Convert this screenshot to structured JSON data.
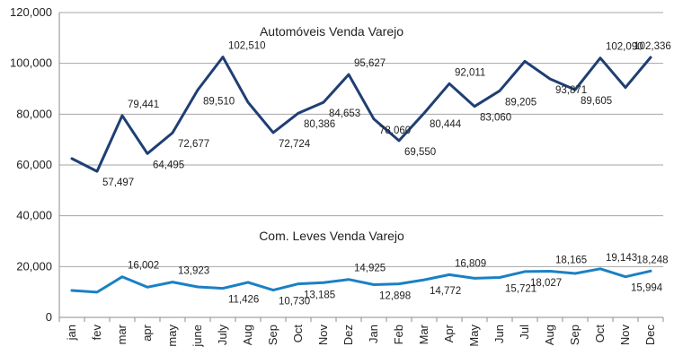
{
  "chart_data": {
    "type": "line",
    "categories": [
      "jan",
      "fev",
      "mar",
      "apr",
      "may",
      "june",
      "July",
      "Aug",
      "Sep",
      "Oct",
      "Nov",
      "Dez",
      "Jan",
      "Feb",
      "Mar",
      "Apr",
      "May",
      "Jun",
      "Jul",
      "Aug",
      "Sep",
      "Oct",
      "Nov",
      "Dec"
    ],
    "ylim": [
      0,
      120000
    ],
    "yticks": [
      "0",
      "20,000",
      "40,000",
      "60,000",
      "80,000",
      "100,000",
      "120,000"
    ],
    "ytick_values": [
      0,
      20000,
      40000,
      60000,
      80000,
      100000,
      120000
    ],
    "grid": true,
    "series": [
      {
        "name": "Automóveis Venda Varejo",
        "color": "#1f3f73",
        "values": [
          62500,
          57497,
          79441,
          64495,
          72677,
          89510,
          102510,
          84653,
          72724,
          80386,
          84653,
          95627,
          78060,
          69550,
          80444,
          92011,
          83060,
          89205,
          100800,
          93871,
          89605,
          102090,
          90500,
          102336
        ],
        "labels": [
          "",
          "57,497",
          "79,441",
          "64,495",
          "72,677",
          "89,510",
          "102,510",
          "",
          "72,724",
          "80,386",
          "84,653",
          "95,627",
          "78,060",
          "69,550",
          "80,444",
          "92,011",
          "83,060",
          "89,205",
          "",
          "93,871",
          "89,605",
          "102,090",
          "",
          "102,336"
        ]
      },
      {
        "name": "Com. Leves Venda Varejo",
        "color": "#1b80c4",
        "values": [
          10600,
          9900,
          16002,
          11900,
          13923,
          12000,
          11426,
          13800,
          10730,
          13185,
          13700,
          14925,
          12898,
          13200,
          14772,
          16809,
          15400,
          15721,
          18027,
          18165,
          17300,
          19143,
          15994,
          18248
        ],
        "labels": [
          "",
          "",
          "16,002",
          "",
          "13,923",
          "",
          "11,426",
          "",
          "10,730",
          "13,185",
          "",
          "14,925",
          "12,898",
          "",
          "14,772",
          "16,809",
          "",
          "15,721",
          "18,027",
          "18,165",
          "",
          "19,143",
          "15,994",
          "18,248"
        ]
      }
    ]
  }
}
